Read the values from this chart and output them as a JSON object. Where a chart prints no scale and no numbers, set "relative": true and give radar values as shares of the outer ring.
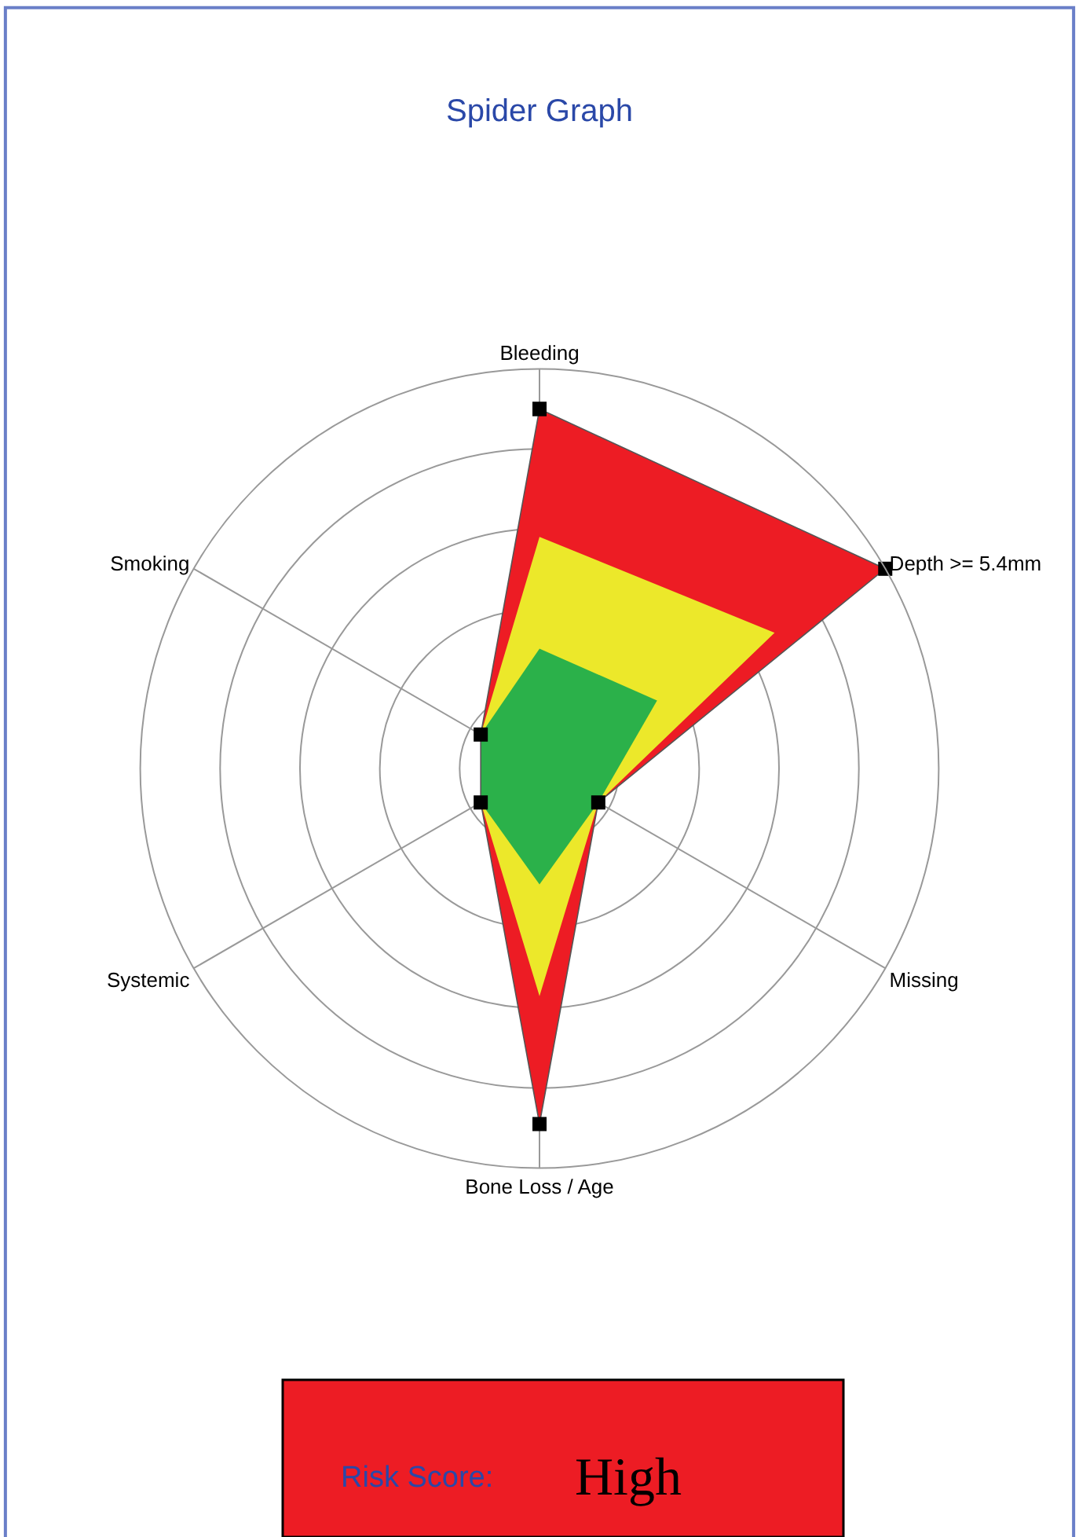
{
  "chart_data": {
    "type": "radar",
    "title": "Spider Graph",
    "relative": true,
    "categories": [
      "Bleeding",
      "Depth >= 5.4mm",
      "Missing",
      "Bone Loss / Age",
      "Systemic",
      "Smoking"
    ],
    "series": [
      {
        "color": "#ed1c24",
        "values": [
          0.9,
          1.0,
          0.17,
          0.89,
          0.17,
          0.17
        ]
      },
      {
        "color": "#ece82a",
        "marker": "none",
        "values": [
          0.58,
          0.68,
          0.17,
          0.57,
          0.17,
          0.17
        ]
      },
      {
        "color": "#2bb14a",
        "marker": "none",
        "values": [
          0.3,
          0.34,
          0.17,
          0.29,
          0.17,
          0.17
        ]
      }
    ],
    "marker": "square",
    "grid": true,
    "annotations": [
      "Risk Score:",
      "High"
    ]
  }
}
